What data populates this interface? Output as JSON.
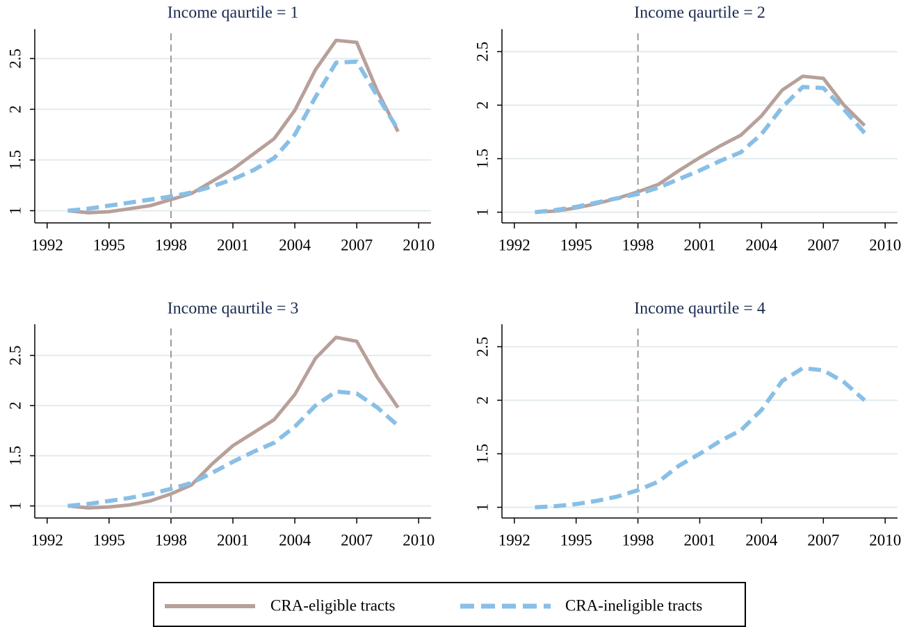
{
  "chart_data": [
    {
      "type": "line",
      "title": "Income qaurtile = 1",
      "x": [
        1993,
        1994,
        1995,
        1996,
        1997,
        1998,
        1999,
        2000,
        2001,
        2002,
        2003,
        2004,
        2005,
        2006,
        2007,
        2008,
        2009
      ],
      "series": [
        {
          "name": "CRA-eligible tracts",
          "color": "#b8a09a",
          "dash": false,
          "values": [
            1.0,
            0.98,
            0.99,
            1.02,
            1.05,
            1.11,
            1.17,
            1.29,
            1.41,
            1.56,
            1.71,
            1.99,
            2.39,
            2.68,
            2.66,
            2.18,
            1.78
          ]
        },
        {
          "name": "CRA-ineligible tracts",
          "color": "#89bfe6",
          "dash": true,
          "values": [
            1.0,
            1.02,
            1.05,
            1.08,
            1.11,
            1.14,
            1.18,
            1.24,
            1.31,
            1.4,
            1.52,
            1.75,
            2.12,
            2.46,
            2.47,
            2.13,
            1.8
          ]
        }
      ],
      "xlim": [
        1991.4,
        2010.6
      ],
      "xticks": [
        1992,
        1995,
        1998,
        2001,
        2004,
        2007,
        2010
      ],
      "ylim": [
        0.88,
        2.79
      ],
      "yticks": [
        1,
        1.5,
        2,
        2.5
      ],
      "vline": 1998,
      "grid": true
    },
    {
      "type": "line",
      "title": "Income qaurtile = 2",
      "x": [
        1993,
        1994,
        1995,
        1996,
        1997,
        1998,
        1999,
        2000,
        2001,
        2002,
        2003,
        2004,
        2005,
        2006,
        2007,
        2008,
        2009
      ],
      "series": [
        {
          "name": "CRA-eligible tracts",
          "color": "#b8a09a",
          "dash": false,
          "values": [
            1.0,
            1.01,
            1.04,
            1.08,
            1.13,
            1.19,
            1.26,
            1.39,
            1.51,
            1.62,
            1.72,
            1.9,
            2.14,
            2.27,
            2.25,
            2.0,
            1.81
          ]
        },
        {
          "name": "CRA-ineligible tracts",
          "color": "#89bfe6",
          "dash": true,
          "values": [
            1.0,
            1.02,
            1.05,
            1.09,
            1.13,
            1.17,
            1.23,
            1.31,
            1.39,
            1.48,
            1.56,
            1.73,
            1.98,
            2.17,
            2.16,
            1.96,
            1.74
          ]
        }
      ],
      "xlim": [
        1991.4,
        2010.6
      ],
      "xticks": [
        1992,
        1995,
        1998,
        2001,
        2004,
        2007,
        2010
      ],
      "ylim": [
        0.9,
        2.71
      ],
      "yticks": [
        1,
        1.5,
        2,
        2.5
      ],
      "vline": 1998,
      "grid": true
    },
    {
      "type": "line",
      "title": "Income qaurtile = 3",
      "x": [
        1993,
        1994,
        1995,
        1996,
        1997,
        1998,
        1999,
        2000,
        2001,
        2002,
        2003,
        2004,
        2005,
        2006,
        2007,
        2008,
        2009
      ],
      "series": [
        {
          "name": "CRA-eligible tracts",
          "color": "#b8a09a",
          "dash": false,
          "values": [
            1.0,
            0.98,
            0.99,
            1.01,
            1.05,
            1.12,
            1.21,
            1.42,
            1.6,
            1.73,
            1.86,
            2.11,
            2.47,
            2.68,
            2.64,
            2.28,
            1.98
          ]
        },
        {
          "name": "CRA-ineligible tracts",
          "color": "#89bfe6",
          "dash": true,
          "values": [
            1.0,
            1.02,
            1.05,
            1.08,
            1.12,
            1.17,
            1.23,
            1.33,
            1.44,
            1.54,
            1.63,
            1.79,
            2.0,
            2.14,
            2.12,
            1.98,
            1.8
          ]
        }
      ],
      "xlim": [
        1991.4,
        2010.6
      ],
      "xticks": [
        1992,
        1995,
        1998,
        2001,
        2004,
        2007,
        2010
      ],
      "ylim": [
        0.88,
        2.81
      ],
      "yticks": [
        1,
        1.5,
        2,
        2.5
      ],
      "vline": 1998,
      "grid": true
    },
    {
      "type": "line",
      "title": "Income qaurtile = 4",
      "x": [
        1993,
        1994,
        1995,
        1996,
        1997,
        1998,
        1999,
        2000,
        2001,
        2002,
        2003,
        2004,
        2005,
        2006,
        2007,
        2008,
        2009
      ],
      "series": [
        {
          "name": "CRA-ineligible tracts",
          "color": "#89bfe6",
          "dash": true,
          "values": [
            1.0,
            1.01,
            1.03,
            1.06,
            1.1,
            1.16,
            1.24,
            1.39,
            1.5,
            1.62,
            1.72,
            1.91,
            2.18,
            2.3,
            2.28,
            2.17,
            2.0
          ]
        }
      ],
      "xlim": [
        1991.4,
        2010.6
      ],
      "xticks": [
        1992,
        1995,
        1998,
        2001,
        2004,
        2007,
        2010
      ],
      "ylim": [
        0.9,
        2.71
      ],
      "yticks": [
        1,
        1.5,
        2,
        2.5
      ],
      "vline": 1998,
      "grid": true
    }
  ]
}
